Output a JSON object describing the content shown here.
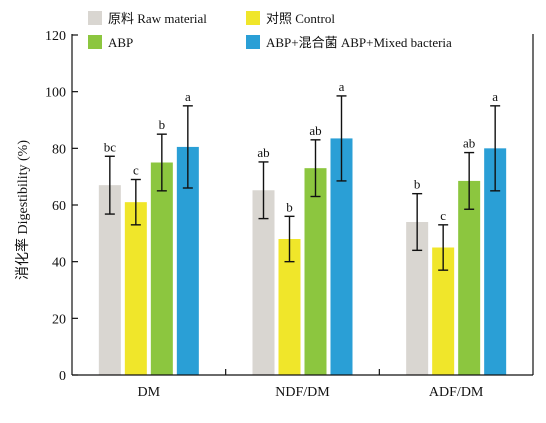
{
  "chart_data": {
    "type": "bar",
    "title": "",
    "ylabel": "消化率 Digestibility (%)",
    "xlabel": "",
    "ylim": [
      0,
      120
    ],
    "yticks": [
      0,
      20,
      40,
      60,
      80,
      100,
      120
    ],
    "grid": false,
    "legend_position": "top",
    "categories": [
      "DM",
      "NDF/DM",
      "ADF/DM"
    ],
    "series": [
      {
        "name": "原料 Raw material",
        "color": "#d9d6d1",
        "values": [
          67,
          65.2,
          54
        ],
        "errors": [
          10.2,
          10,
          10
        ],
        "labels": [
          "bc",
          "ab",
          "b"
        ]
      },
      {
        "name": "对照 Control",
        "color": "#f0e62a",
        "values": [
          61,
          48,
          45
        ],
        "errors": [
          8,
          8,
          8
        ],
        "labels": [
          "c",
          "b",
          "c"
        ]
      },
      {
        "name": "ABP",
        "color": "#8cc63f",
        "values": [
          75,
          73,
          68.5
        ],
        "errors": [
          10,
          10,
          10
        ],
        "labels": [
          "b",
          "ab",
          "ab"
        ]
      },
      {
        "name": "ABP+混合菌 ABP+Mixed bacteria",
        "color": "#2a9fd6",
        "values": [
          80.5,
          83.5,
          80
        ],
        "errors": [
          14.5,
          15,
          15
        ],
        "labels": [
          "a",
          "a",
          "a"
        ]
      }
    ]
  }
}
